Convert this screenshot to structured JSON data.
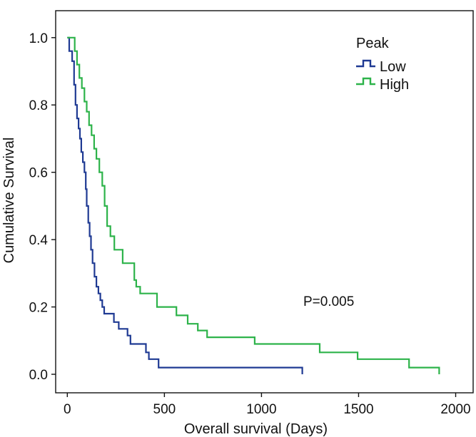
{
  "chart_data": {
    "type": "line",
    "step": true,
    "xlabel": "Overall survival (Days)",
    "ylabel": "Cumulative Survival",
    "xlim": [
      -60,
      2090
    ],
    "ylim": [
      -0.055,
      1.08
    ],
    "xticks": [
      0,
      500,
      1000,
      1500,
      2000
    ],
    "yticks": [
      0.0,
      0.2,
      0.4,
      0.6,
      0.8,
      1.0
    ],
    "xtick_labels": [
      "0",
      "500",
      "1000",
      "1500",
      "2000"
    ],
    "ytick_labels": [
      "0.0",
      "0.2",
      "0.4",
      "0.6",
      "0.8",
      "1.0"
    ],
    "grid": false,
    "legend": {
      "title": "Peak",
      "position": "top-right"
    },
    "annotation": "P=0.005",
    "series": [
      {
        "name": "Low",
        "color": "#1f3a93",
        "x": [
          0,
          10,
          25,
          35,
          42,
          50,
          58,
          65,
          72,
          80,
          88,
          95,
          100,
          108,
          115,
          122,
          130,
          140,
          150,
          160,
          170,
          180,
          190,
          240,
          265,
          310,
          325,
          405,
          420,
          470,
          765,
          1210
        ],
        "y": [
          1.0,
          0.96,
          0.93,
          0.86,
          0.8,
          0.76,
          0.73,
          0.7,
          0.66,
          0.63,
          0.6,
          0.55,
          0.5,
          0.45,
          0.41,
          0.37,
          0.33,
          0.29,
          0.26,
          0.24,
          0.22,
          0.2,
          0.18,
          0.155,
          0.135,
          0.115,
          0.09,
          0.065,
          0.045,
          0.02,
          0.02,
          0.0
        ]
      },
      {
        "name": "High",
        "color": "#2db34a",
        "x": [
          0,
          38,
          50,
          62,
          75,
          88,
          100,
          112,
          125,
          138,
          150,
          165,
          180,
          192,
          205,
          222,
          242,
          285,
          345,
          355,
          375,
          462,
          562,
          620,
          672,
          720,
          965,
          1300,
          1495,
          1760,
          1915
        ],
        "y": [
          1.0,
          0.96,
          0.92,
          0.88,
          0.85,
          0.81,
          0.78,
          0.74,
          0.71,
          0.67,
          0.64,
          0.6,
          0.56,
          0.5,
          0.44,
          0.41,
          0.37,
          0.33,
          0.28,
          0.26,
          0.24,
          0.2,
          0.175,
          0.15,
          0.13,
          0.11,
          0.09,
          0.065,
          0.045,
          0.02,
          0.0
        ]
      }
    ]
  }
}
